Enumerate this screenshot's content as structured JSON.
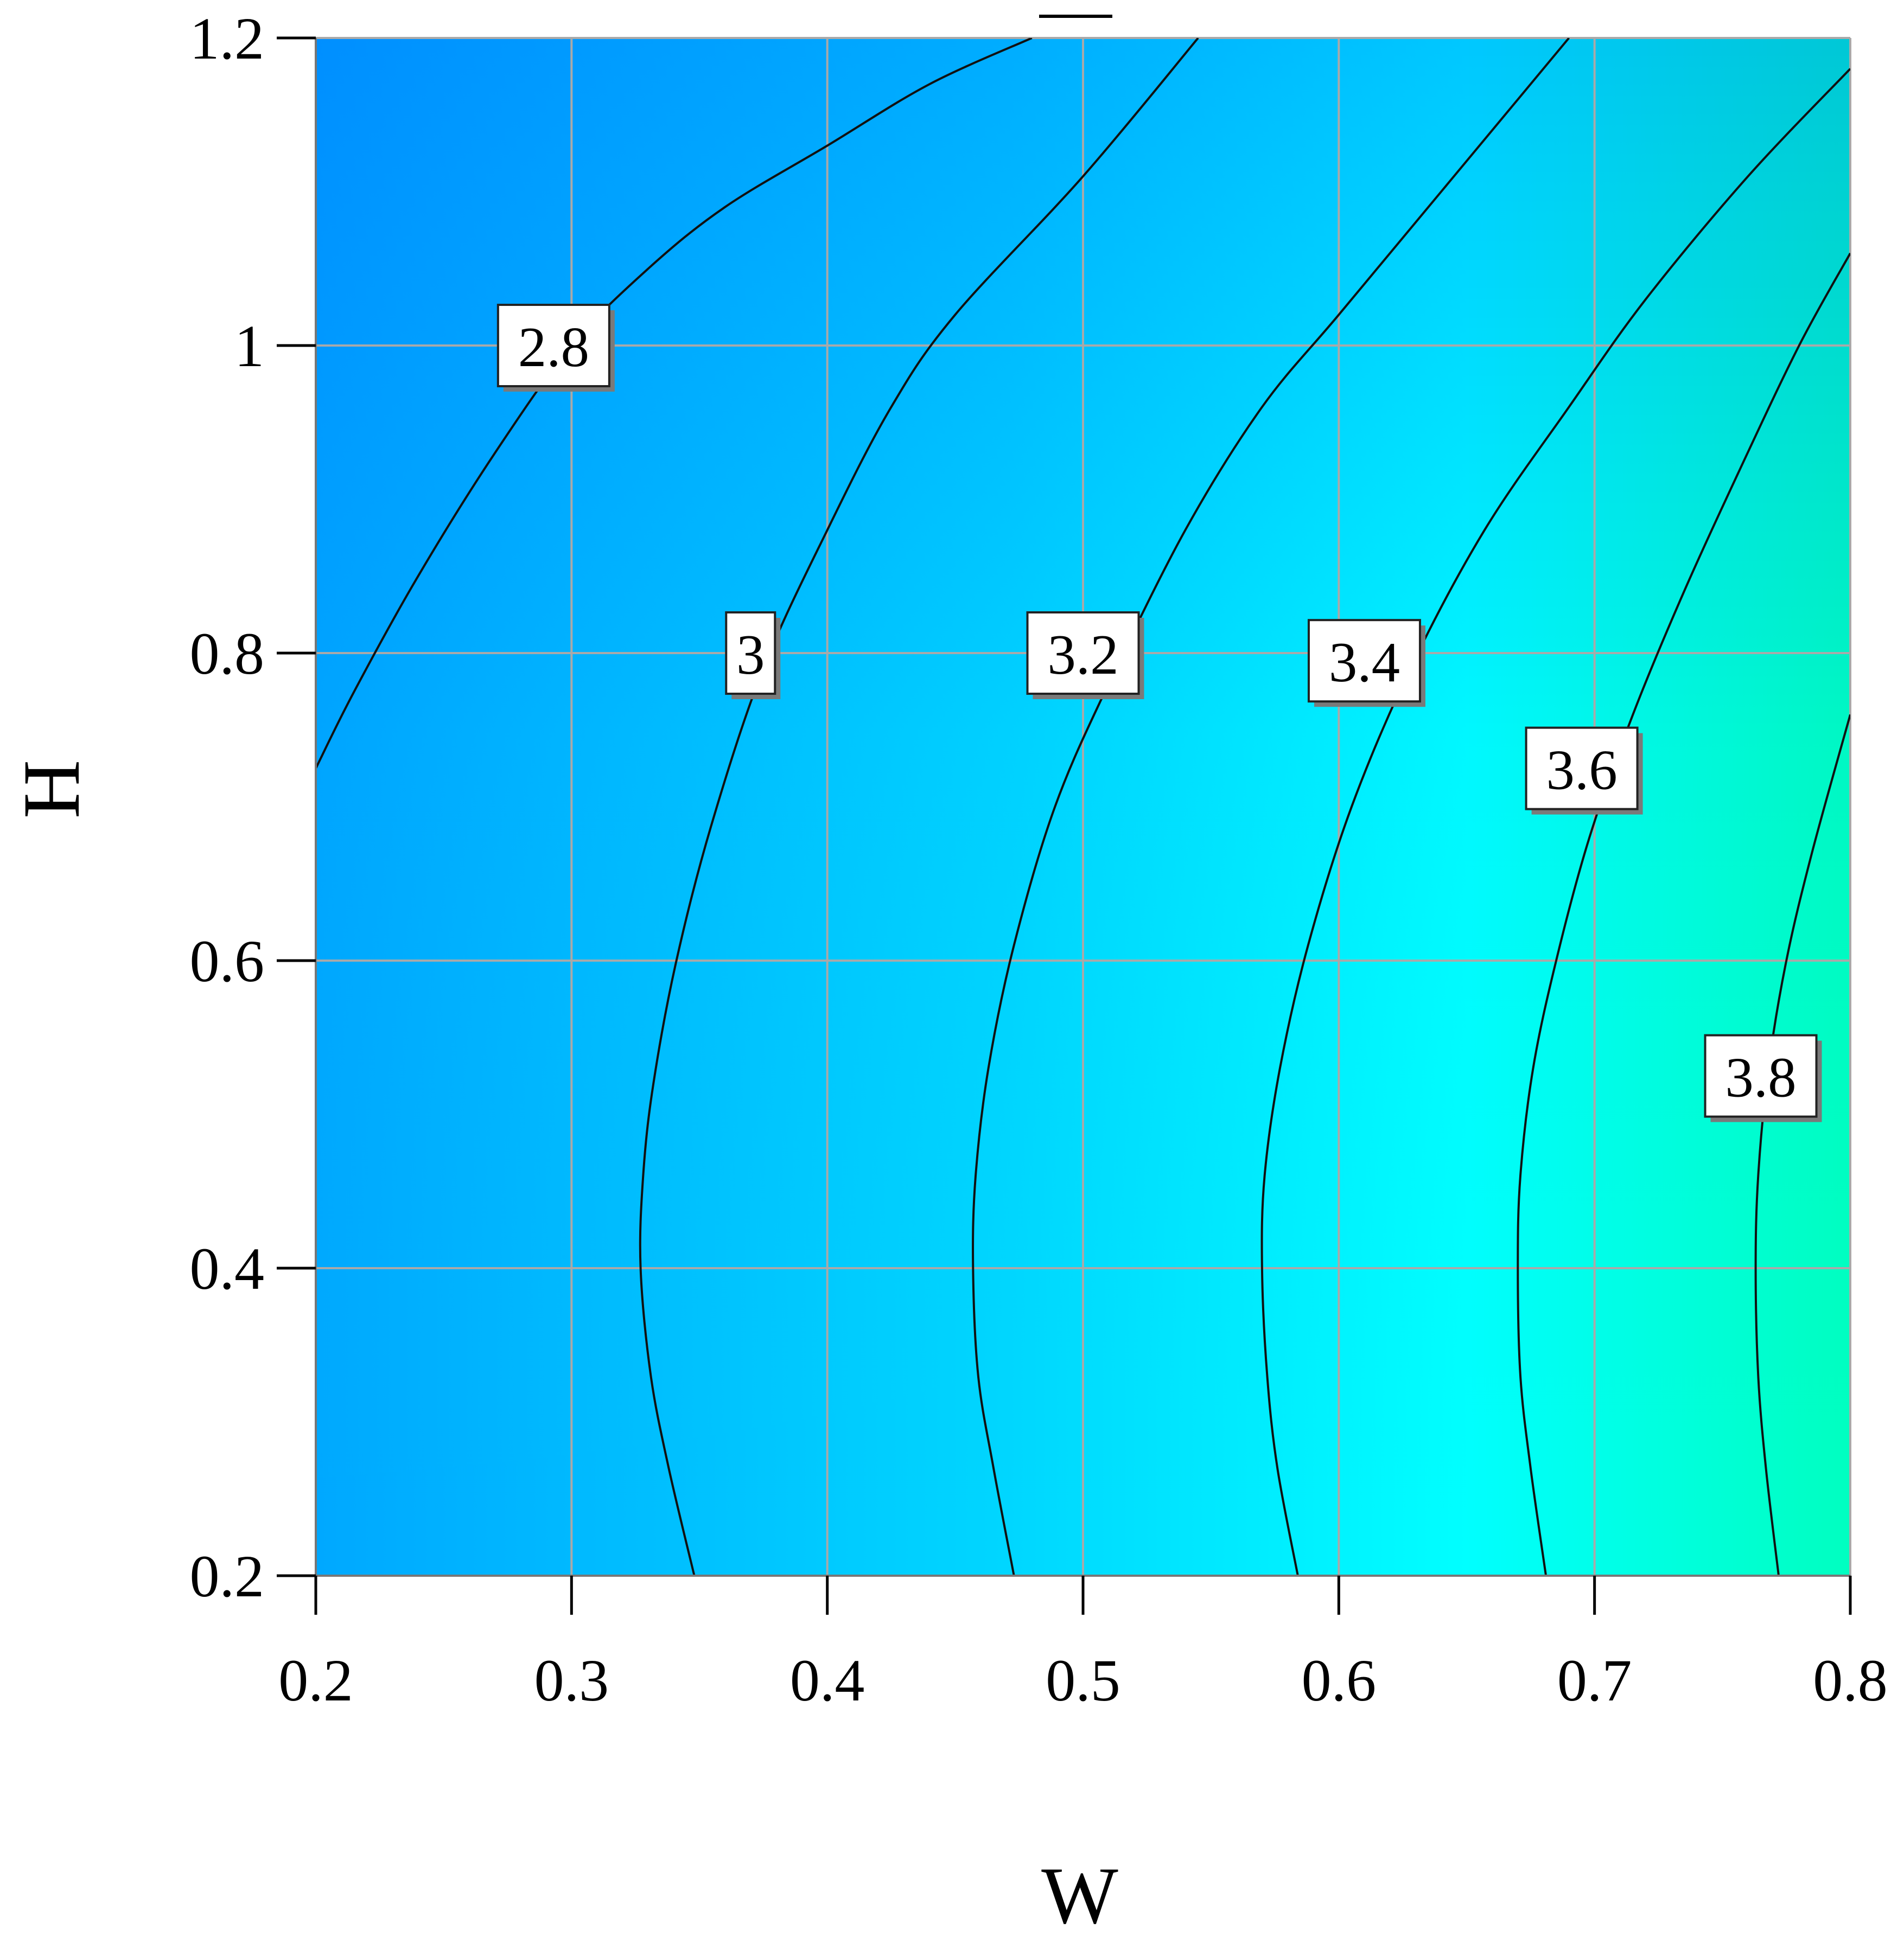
{
  "chart_data": {
    "type": "contour",
    "title": "",
    "xlabel": "W",
    "ylabel": "H",
    "xlim": [
      0.2,
      0.8
    ],
    "ylim": [
      0.2,
      1.2
    ],
    "xticks": [
      "0.2",
      "0.3",
      "0.4",
      "0.5",
      "0.6",
      "0.7",
      "0.8"
    ],
    "yticks": [
      "0.2",
      "0.4",
      "0.6",
      "0.8",
      "1",
      "1.2"
    ],
    "grid": true,
    "colormap": {
      "low": "#0099ff",
      "mid": "#00ffff",
      "high": "#00ffb0"
    },
    "contours": [
      {
        "level": "2.8",
        "label_at": [
          0.293,
          1.0
        ],
        "points": [
          [
            0.2,
            0.725
          ],
          [
            0.215,
            0.775
          ],
          [
            0.24,
            0.85
          ],
          [
            0.27,
            0.93
          ],
          [
            0.3,
            1.0
          ],
          [
            0.33,
            1.05
          ],
          [
            0.36,
            1.09
          ],
          [
            0.4,
            1.13
          ],
          [
            0.44,
            1.17
          ],
          [
            0.48,
            1.2
          ]
        ]
      },
      {
        "level": "3",
        "label_at": [
          0.37,
          0.8
        ],
        "points": [
          [
            0.348,
            0.2
          ],
          [
            0.338,
            0.27
          ],
          [
            0.331,
            0.33
          ],
          [
            0.327,
            0.4
          ],
          [
            0.328,
            0.46
          ],
          [
            0.332,
            0.52
          ],
          [
            0.341,
            0.6
          ],
          [
            0.355,
            0.69
          ],
          [
            0.375,
            0.79
          ],
          [
            0.4,
            0.88
          ],
          [
            0.425,
            0.96
          ],
          [
            0.45,
            1.02
          ],
          [
            0.5,
            1.11
          ],
          [
            0.545,
            1.2
          ]
        ]
      },
      {
        "level": "3.2",
        "label_at": [
          0.5,
          0.8
        ],
        "points": [
          [
            0.473,
            0.2
          ],
          [
            0.465,
            0.27
          ],
          [
            0.459,
            0.33
          ],
          [
            0.457,
            0.4
          ],
          [
            0.458,
            0.46
          ],
          [
            0.463,
            0.53
          ],
          [
            0.473,
            0.61
          ],
          [
            0.489,
            0.7
          ],
          [
            0.51,
            0.78
          ],
          [
            0.54,
            0.88
          ],
          [
            0.57,
            0.96
          ],
          [
            0.6,
            1.02
          ],
          [
            0.64,
            1.1
          ],
          [
            0.69,
            1.2
          ]
        ]
      },
      {
        "level": "3.4",
        "label_at": [
          0.61,
          0.795
        ],
        "points": [
          [
            0.584,
            0.2
          ],
          [
            0.576,
            0.27
          ],
          [
            0.572,
            0.33
          ],
          [
            0.57,
            0.4
          ],
          [
            0.571,
            0.46
          ],
          [
            0.577,
            0.53
          ],
          [
            0.588,
            0.61
          ],
          [
            0.605,
            0.7
          ],
          [
            0.628,
            0.79
          ],
          [
            0.657,
            0.88
          ],
          [
            0.69,
            0.96
          ],
          [
            0.72,
            1.03
          ],
          [
            0.76,
            1.11
          ],
          [
            0.8,
            1.18
          ]
        ]
      },
      {
        "level": "3.6",
        "label_at": [
          0.695,
          0.725
        ],
        "points": [
          [
            0.681,
            0.2
          ],
          [
            0.675,
            0.27
          ],
          [
            0.671,
            0.33
          ],
          [
            0.67,
            0.4
          ],
          [
            0.671,
            0.46
          ],
          [
            0.676,
            0.53
          ],
          [
            0.685,
            0.6
          ],
          [
            0.698,
            0.68
          ],
          [
            0.715,
            0.76
          ],
          [
            0.735,
            0.84
          ],
          [
            0.757,
            0.92
          ],
          [
            0.78,
            1.0
          ],
          [
            0.8,
            1.06
          ]
        ]
      },
      {
        "level": "3.8",
        "label_at": [
          0.765,
          0.525
        ],
        "points": [
          [
            0.772,
            0.2
          ],
          [
            0.767,
            0.27
          ],
          [
            0.764,
            0.33
          ],
          [
            0.763,
            0.4
          ],
          [
            0.764,
            0.46
          ],
          [
            0.768,
            0.53
          ],
          [
            0.775,
            0.6
          ],
          [
            0.785,
            0.67
          ],
          [
            0.8,
            0.76
          ]
        ]
      }
    ]
  }
}
